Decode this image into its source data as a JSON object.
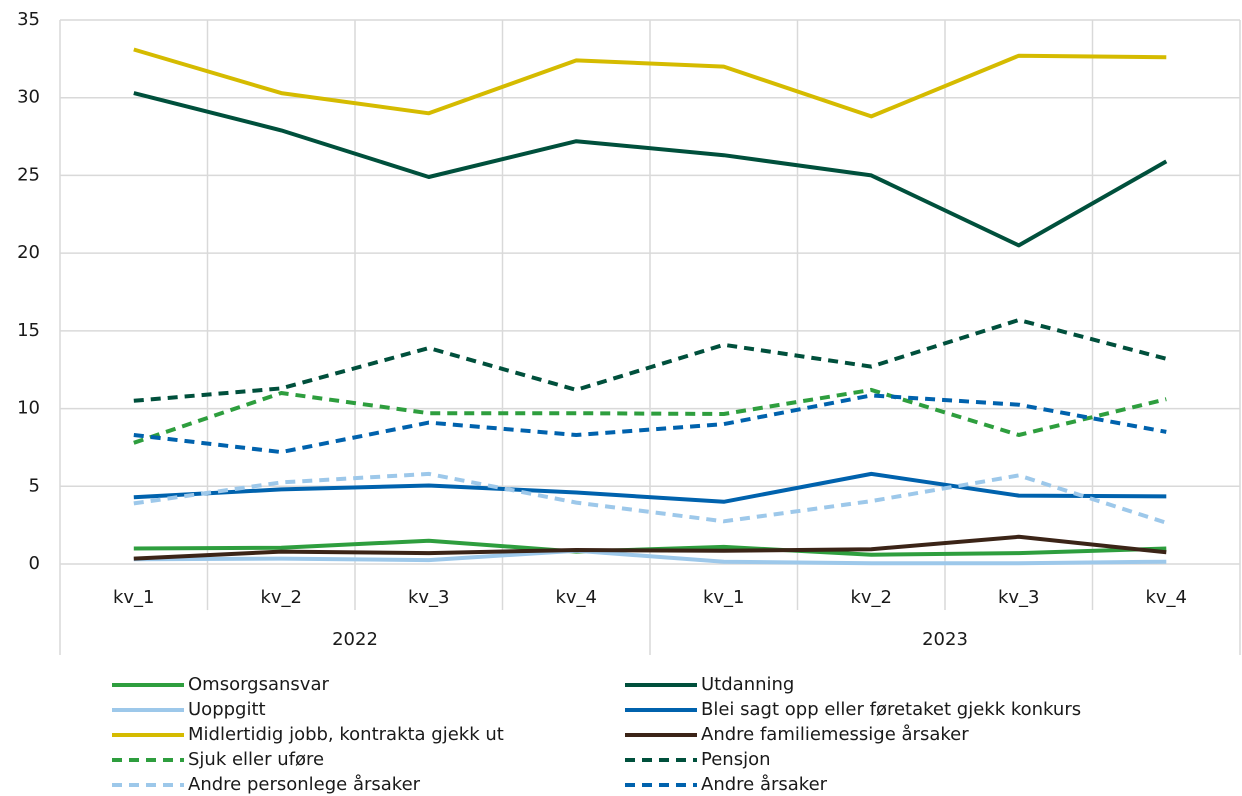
{
  "chart_data": {
    "type": "line",
    "categories": [
      "kv_1",
      "kv_2",
      "kv_3",
      "kv_4",
      "kv_1",
      "kv_2",
      "kv_3",
      "kv_4"
    ],
    "category_groups": [
      "2022",
      "2023"
    ],
    "ylim": [
      0,
      35
    ],
    "yticks": [
      0,
      5,
      10,
      15,
      20,
      25,
      30,
      35
    ],
    "grid": true,
    "series": [
      {
        "name": "Omsorgsansvar",
        "color": "#2e9e3e",
        "dashed": false,
        "values": [
          1.0,
          1.05,
          1.5,
          0.8,
          1.1,
          0.6,
          0.7,
          1.0
        ]
      },
      {
        "name": "Utdanning",
        "color": "#00503c",
        "dashed": false,
        "values": [
          30.3,
          27.9,
          24.9,
          27.2,
          26.3,
          25.0,
          20.5,
          25.9
        ]
      },
      {
        "name": "Uoppgitt",
        "color": "#9dc8ea",
        "dashed": false,
        "values": [
          0.3,
          0.35,
          0.25,
          0.85,
          0.15,
          0.05,
          0.05,
          0.15
        ]
      },
      {
        "name": "Blei sagt opp eller føretaket gjekk konkurs",
        "color": "#0062ad",
        "dashed": false,
        "values": [
          4.3,
          4.8,
          5.05,
          4.6,
          4.0,
          5.8,
          4.4,
          4.35
        ]
      },
      {
        "name": "Midlertidig jobb, kontrakta gjekk ut",
        "color": "#d5bb00",
        "dashed": false,
        "values": [
          33.1,
          30.3,
          29.0,
          32.4,
          32.0,
          28.8,
          32.7,
          32.6
        ]
      },
      {
        "name": "Andre familiemessige årsaker",
        "color": "#3b2417",
        "dashed": false,
        "values": [
          0.35,
          0.8,
          0.7,
          0.9,
          0.85,
          0.95,
          1.75,
          0.75
        ]
      },
      {
        "name": "Sjuk eller uføre",
        "color": "#2e9e3e",
        "dashed": true,
        "values": [
          7.8,
          11.0,
          9.7,
          9.7,
          9.65,
          11.2,
          8.3,
          10.6
        ]
      },
      {
        "name": "Pensjon",
        "color": "#00503c",
        "dashed": true,
        "values": [
          10.5,
          11.3,
          13.9,
          11.2,
          14.1,
          12.7,
          15.7,
          13.2
        ]
      },
      {
        "name": "Andre personlege årsaker",
        "color": "#9dc8ea",
        "dashed": true,
        "values": [
          3.9,
          5.25,
          5.8,
          3.95,
          2.75,
          4.05,
          5.7,
          2.65
        ]
      },
      {
        "name": "Andre årsaker",
        "color": "#0062ad",
        "dashed": true,
        "values": [
          8.3,
          7.2,
          9.1,
          8.3,
          9.0,
          10.85,
          10.25,
          8.5
        ]
      }
    ]
  }
}
